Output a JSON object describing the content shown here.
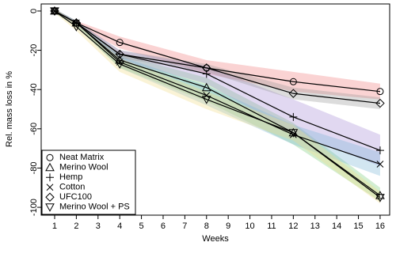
{
  "chart_data": {
    "type": "line",
    "x_label": "Weeks",
    "y_label": "Rel. mass loss in %",
    "x": [
      1,
      2,
      4,
      8,
      12,
      16
    ],
    "xlim": [
      0.38,
      16.44
    ],
    "xticks": [
      1,
      2,
      3,
      4,
      5,
      6,
      7,
      8,
      9,
      10,
      11,
      12,
      13,
      14,
      15,
      16
    ],
    "ylim": [
      -104,
      3.6
    ],
    "yticks": [
      0,
      -20,
      -40,
      -60,
      -80,
      -100
    ],
    "legend": "lower left",
    "line_color": "#000000",
    "series": [
      {
        "name": "Neat Matrix",
        "marker": "circle",
        "band_color": "#f08080",
        "values": [
          0,
          -6,
          -16,
          -29,
          -36,
          -41
        ],
        "upper": [
          1,
          -5,
          -13,
          -25,
          -31,
          -37
        ],
        "lower": [
          -1,
          -7,
          -19,
          -32,
          -41,
          -45
        ]
      },
      {
        "name": "Merino Wool",
        "marker": "triangle",
        "band_color": "#7fcf7f",
        "values": [
          0,
          -6,
          -25,
          -39,
          -62,
          -94
        ],
        "upper": [
          1,
          -5,
          -22,
          -34,
          -57,
          -90
        ],
        "lower": [
          -1,
          -8,
          -29,
          -46,
          -68,
          -97
        ]
      },
      {
        "name": "Hemp",
        "marker": "plus",
        "band_color": "#a98fd6",
        "values": [
          0,
          -6,
          -22,
          -32,
          -54,
          -71
        ],
        "upper": [
          1,
          -5,
          -20,
          -28,
          -45,
          -63
        ],
        "lower": [
          -1,
          -7,
          -25,
          -37,
          -62,
          -79
        ]
      },
      {
        "name": "Cotton",
        "marker": "cross",
        "band_color": "#7fb7d8",
        "values": [
          0,
          -6,
          -26,
          -43,
          -63,
          -78
        ],
        "upper": [
          1,
          -5,
          -23,
          -38,
          -58,
          -72
        ],
        "lower": [
          -1,
          -8,
          -29,
          -48,
          -68,
          -84
        ]
      },
      {
        "name": "UFC100",
        "marker": "diamond",
        "band_color": "#9a9a9a",
        "values": [
          0,
          -6,
          -22,
          -29,
          -42,
          -47
        ],
        "upper": [
          1,
          -5,
          -20,
          -27,
          -39,
          -44
        ],
        "lower": [
          -1,
          -7,
          -24,
          -31,
          -45,
          -50
        ]
      },
      {
        "name": "Merino Wool + PS",
        "marker": "down-triangle",
        "band_color": "#f2dc8a",
        "values": [
          0,
          -8,
          -27,
          -45,
          -62,
          -95
        ],
        "upper": [
          1,
          -6,
          -24,
          -41,
          -58,
          -92
        ],
        "lower": [
          -1,
          -10,
          -31,
          -50,
          -66,
          -98
        ]
      }
    ]
  }
}
